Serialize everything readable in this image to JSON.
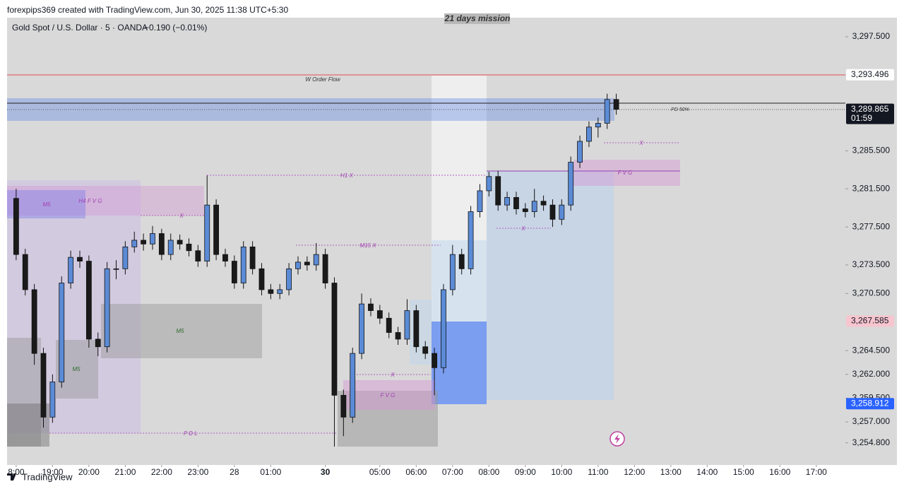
{
  "header": {
    "credit": "forexpips369 created with TradingView.com, Jun 30, 2025 11:38 UTC+5:30",
    "symbol": "Gold Spot / U.S. Dollar · 5 · OANDA",
    "change": "−0.190 (−0.01%)",
    "brand": "TradingView"
  },
  "chart_data": {
    "type": "candlestick",
    "up_color": "#5b8bd6",
    "down_color": "#1a1a1a",
    "x": [
      0,
      0.25,
      0.5,
      0.75,
      1,
      1.25,
      1.5,
      1.75,
      2,
      2.25,
      2.5,
      2.75,
      3,
      3.25,
      3.5,
      3.75,
      4,
      4.25,
      4.5,
      4.75,
      5,
      5.25,
      5.5,
      5.75,
      6,
      6.25,
      6.5,
      6.75,
      7,
      7.25,
      7.5,
      7.75,
      8,
      8.25,
      8.5,
      8.75,
      9,
      9.25,
      9.5,
      9.75,
      10,
      10.25,
      10.5,
      10.75,
      11,
      11.25,
      11.5,
      11.75,
      12,
      12.25,
      12.5,
      12.75,
      13,
      13.25,
      13.5,
      13.75,
      14,
      14.25,
      14.5,
      14.75,
      15,
      15.25,
      15.5,
      15.75,
      16,
      16.25,
      16.5
    ],
    "ohlc": [
      [
        3280.5,
        3281.5,
        3274.0,
        3274.6
      ],
      [
        3274.6,
        3275.2,
        3270.3,
        3270.9
      ],
      [
        3270.9,
        3271.5,
        3263.0,
        3264.2
      ],
      [
        3264.2,
        3264.8,
        3256.4,
        3257.5
      ],
      [
        3257.5,
        3262.0,
        3256.9,
        3261.2
      ],
      [
        3261.2,
        3272.3,
        3260.6,
        3271.6
      ],
      [
        3271.6,
        3275.0,
        3271.0,
        3274.3
      ],
      [
        3274.3,
        3275.0,
        3273.2,
        3273.9
      ],
      [
        3273.9,
        3274.5,
        3264.8,
        3265.7
      ],
      [
        3265.7,
        3266.4,
        3263.9,
        3264.9
      ],
      [
        3264.9,
        3273.8,
        3264.3,
        3273.1
      ],
      [
        3273.1,
        3274.0,
        3272.0,
        3273.1
      ],
      [
        3273.1,
        3276.0,
        3272.5,
        3275.4
      ],
      [
        3275.4,
        3277.0,
        3274.8,
        3276.1
      ],
      [
        3276.1,
        3276.8,
        3275.0,
        3275.7
      ],
      [
        3275.7,
        3277.6,
        3275.1,
        3276.8
      ],
      [
        3276.8,
        3277.3,
        3274.0,
        3274.6
      ],
      [
        3274.6,
        3276.8,
        3274.0,
        3276.1
      ],
      [
        3276.1,
        3276.7,
        3275.1,
        3275.7
      ],
      [
        3275.7,
        3276.3,
        3274.4,
        3275.0
      ],
      [
        3275.0,
        3275.6,
        3273.3,
        3273.9
      ],
      [
        3273.9,
        3282.9,
        3273.3,
        3279.8
      ],
      [
        3279.8,
        3280.4,
        3274.0,
        3274.6
      ],
      [
        3274.6,
        3275.2,
        3273.3,
        3273.9
      ],
      [
        3273.9,
        3274.5,
        3271.0,
        3271.6
      ],
      [
        3271.6,
        3276.0,
        3271.0,
        3275.4
      ],
      [
        3275.4,
        3276.0,
        3272.5,
        3273.1
      ],
      [
        3273.1,
        3273.7,
        3270.3,
        3270.9
      ],
      [
        3270.9,
        3271.5,
        3269.9,
        3270.5
      ],
      [
        3270.5,
        3271.5,
        3269.9,
        3270.9
      ],
      [
        3270.9,
        3273.7,
        3270.3,
        3273.1
      ],
      [
        3273.1,
        3274.4,
        3272.5,
        3273.8
      ],
      [
        3273.8,
        3274.4,
        3272.9,
        3273.5
      ],
      [
        3273.5,
        3275.8,
        3272.9,
        3274.6
      ],
      [
        3274.6,
        3275.2,
        3271.0,
        3271.6
      ],
      [
        3271.6,
        3272.2,
        3254.4,
        3259.8
      ],
      [
        3259.8,
        3260.4,
        3255.5,
        3257.5
      ],
      [
        3257.5,
        3264.8,
        3256.9,
        3264.2
      ],
      [
        3264.2,
        3270.5,
        3263.6,
        3269.4
      ],
      [
        3269.4,
        3270.0,
        3268.1,
        3268.7
      ],
      [
        3268.7,
        3269.3,
        3267.3,
        3267.9
      ],
      [
        3267.9,
        3268.5,
        3265.8,
        3266.4
      ],
      [
        3266.4,
        3267.0,
        3265.1,
        3265.7
      ],
      [
        3265.7,
        3269.9,
        3265.1,
        3268.7
      ],
      [
        3268.7,
        3269.3,
        3264.3,
        3264.9
      ],
      [
        3264.9,
        3265.5,
        3263.6,
        3264.2
      ],
      [
        3264.2,
        3264.8,
        3259.8,
        3262.7
      ],
      [
        3262.7,
        3271.5,
        3262.1,
        3270.9
      ],
      [
        3270.9,
        3275.6,
        3270.3,
        3274.6
      ],
      [
        3274.6,
        3275.2,
        3272.5,
        3273.1
      ],
      [
        3273.1,
        3279.7,
        3272.5,
        3279.1
      ],
      [
        3279.1,
        3282.0,
        3278.5,
        3281.3
      ],
      [
        3281.3,
        3283.3,
        3280.7,
        3282.8
      ],
      [
        3282.8,
        3283.4,
        3279.2,
        3279.8
      ],
      [
        3279.8,
        3281.2,
        3279.2,
        3280.6
      ],
      [
        3280.6,
        3281.2,
        3278.8,
        3279.4
      ],
      [
        3279.4,
        3280.0,
        3278.5,
        3279.1
      ],
      [
        3279.1,
        3281.5,
        3278.5,
        3280.2
      ],
      [
        3280.2,
        3280.8,
        3279.2,
        3279.8
      ],
      [
        3279.8,
        3280.4,
        3277.5,
        3278.3
      ],
      [
        3278.3,
        3280.4,
        3277.7,
        3279.8
      ],
      [
        3279.8,
        3284.9,
        3279.2,
        3284.3
      ],
      [
        3284.3,
        3287.1,
        3283.7,
        3286.5
      ],
      [
        3286.5,
        3288.6,
        3285.9,
        3288.0
      ],
      [
        3288.0,
        3289.0,
        3286.9,
        3288.4
      ],
      [
        3288.4,
        3291.5,
        3287.8,
        3290.9
      ],
      [
        3290.9,
        3291.5,
        3289.3,
        3289.865
      ]
    ],
    "xlim": [
      -0.25,
      22.8
    ],
    "xticks": [
      {
        "value": 0,
        "label": "8:00"
      },
      {
        "value": 1,
        "label": "19:00"
      },
      {
        "value": 2,
        "label": "20:00"
      },
      {
        "value": 3,
        "label": "21:00"
      },
      {
        "value": 4,
        "label": "22:00"
      },
      {
        "value": 5,
        "label": "23:00"
      },
      {
        "value": 6,
        "label": "28"
      },
      {
        "value": 7,
        "label": "01:00"
      },
      {
        "value": 8.5,
        "label": "30"
      },
      {
        "value": 10,
        "label": "05:00"
      },
      {
        "value": 11,
        "label": "06:00"
      },
      {
        "value": 12,
        "label": "07:00"
      },
      {
        "value": 13,
        "label": "08:00"
      },
      {
        "value": 14,
        "label": "09:00"
      },
      {
        "value": 15,
        "label": "10:00"
      },
      {
        "value": 16,
        "label": "11:00"
      },
      {
        "value": 17,
        "label": "12:00"
      },
      {
        "value": 18,
        "label": "13:00"
      },
      {
        "value": 19,
        "label": "14:00"
      },
      {
        "value": 20,
        "label": "15:00"
      },
      {
        "value": 21,
        "label": "16:00"
      },
      {
        "value": 22,
        "label": "17:00"
      }
    ],
    "ylim": [
      3252.47,
      3299.5
    ],
    "yticks": [
      {
        "value": 3297.5,
        "label": "3,297.500"
      },
      {
        "value": 3285.5,
        "label": "3,285.500"
      },
      {
        "value": 3281.5,
        "label": "3,281.500"
      },
      {
        "value": 3277.5,
        "label": "3,277.500"
      },
      {
        "value": 3273.5,
        "label": "3,273.500"
      },
      {
        "value": 3270.5,
        "label": "3,270.500"
      },
      {
        "value": 3264.5,
        "label": "3,264.500"
      },
      {
        "value": 3262.0,
        "label": "3,262.000"
      },
      {
        "value": 3259.5,
        "label": "3,259.500"
      },
      {
        "value": 3257.0,
        "label": "3,257.000"
      },
      {
        "value": 3254.8,
        "label": "3,254.800"
      }
    ],
    "price_labels": [
      {
        "value": 3293.496,
        "label": "3,293.496",
        "color": "#ffffff",
        "text_color": "#131722"
      },
      {
        "value": 3289.865,
        "label": "3,289.865",
        "color": "#131722",
        "text_color": "#ffffff",
        "countdown": "01:59"
      },
      {
        "value": 3267.585,
        "label": "3,267.585",
        "color": "#f7c5cf",
        "text_color": "#131722"
      },
      {
        "value": 3258.912,
        "label": "3,258.912",
        "color": "#2962ff",
        "text_color": "#ffffff"
      }
    ],
    "annotations": [
      "21 days mission",
      "W Order Flow",
      "PD 50%",
      "H1 X",
      "M15 X",
      "M5",
      "H4 F V G",
      "M5",
      "M5",
      "X",
      "X",
      "X",
      "X",
      "X",
      "F V G",
      "F V G",
      "P D L"
    ]
  }
}
